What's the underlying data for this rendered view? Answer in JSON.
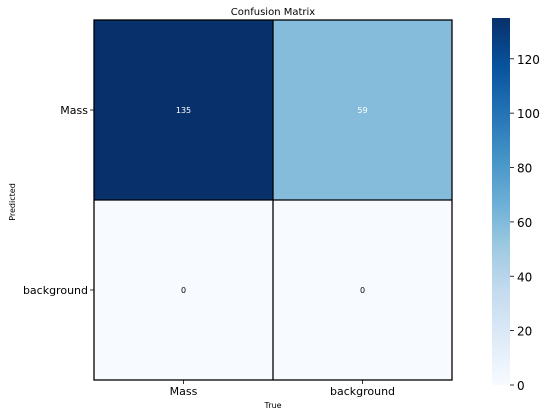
{
  "chart_data": {
    "type": "heatmap",
    "title": "Confusion Matrix",
    "xlabel": "True",
    "ylabel": "Predicted",
    "x_categories": [
      "Mass",
      "background"
    ],
    "y_categories": [
      "Mass",
      "background"
    ],
    "values": [
      [
        135,
        59
      ],
      [
        0,
        0
      ]
    ],
    "value_labels": [
      [
        "135",
        "59"
      ],
      [
        "0",
        "0"
      ]
    ],
    "colorbar": {
      "min": 0,
      "max": 135,
      "ticks": [
        0,
        20,
        40,
        60,
        80,
        100,
        120
      ],
      "tick_labels": [
        "0",
        "20",
        "40",
        "60",
        "80",
        "100",
        "120"
      ],
      "colormap": "Blues",
      "stops": [
        "#f7fbff",
        "#deebf7",
        "#c6dbef",
        "#9ecae1",
        "#6baed6",
        "#4292c6",
        "#2171b5",
        "#08519c",
        "#08306b"
      ]
    },
    "grid": false
  }
}
